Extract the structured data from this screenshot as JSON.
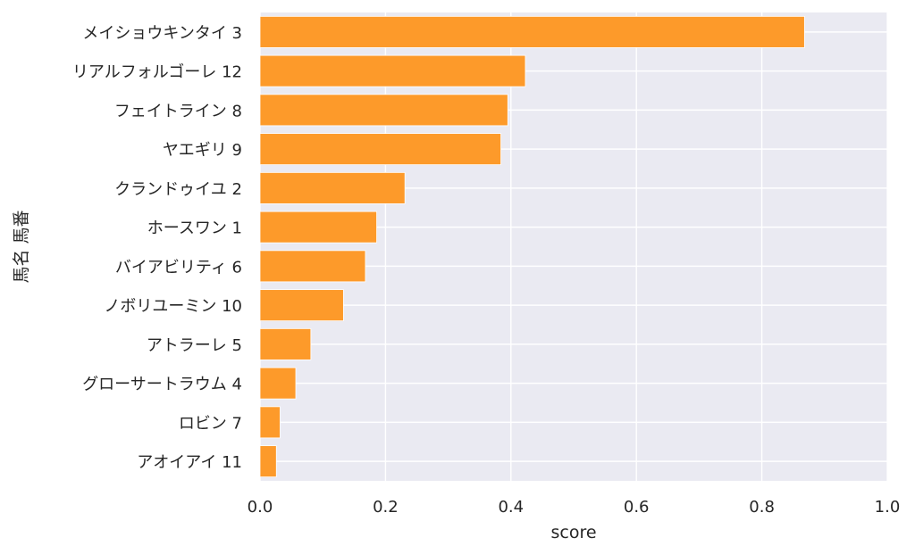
{
  "chart_data": {
    "type": "bar",
    "orientation": "horizontal",
    "xlabel": "score",
    "ylabel": "馬名 馬番",
    "xlim": [
      0,
      1
    ],
    "xticks": [
      "0.0",
      "0.2",
      "0.4",
      "0.6",
      "0.8",
      "1.0"
    ],
    "grid": true,
    "bar_color": "#fd9a2a",
    "background_color": "#eaeaf2",
    "categories": [
      "メイショウキンタイ 3",
      "リアルフォルゴーレ 12",
      "フェイトライン 8",
      "ヤエギリ 9",
      "クランドゥイユ 2",
      "ホースワン 1",
      "バイアビリティ 6",
      "ノボリユーミン 10",
      "アトラーレ 5",
      "グローサートラウム 4",
      "ロビン 7",
      "アオイアイ 11"
    ],
    "values": [
      0.868,
      0.423,
      0.395,
      0.384,
      0.231,
      0.186,
      0.168,
      0.133,
      0.081,
      0.057,
      0.032,
      0.026
    ]
  }
}
